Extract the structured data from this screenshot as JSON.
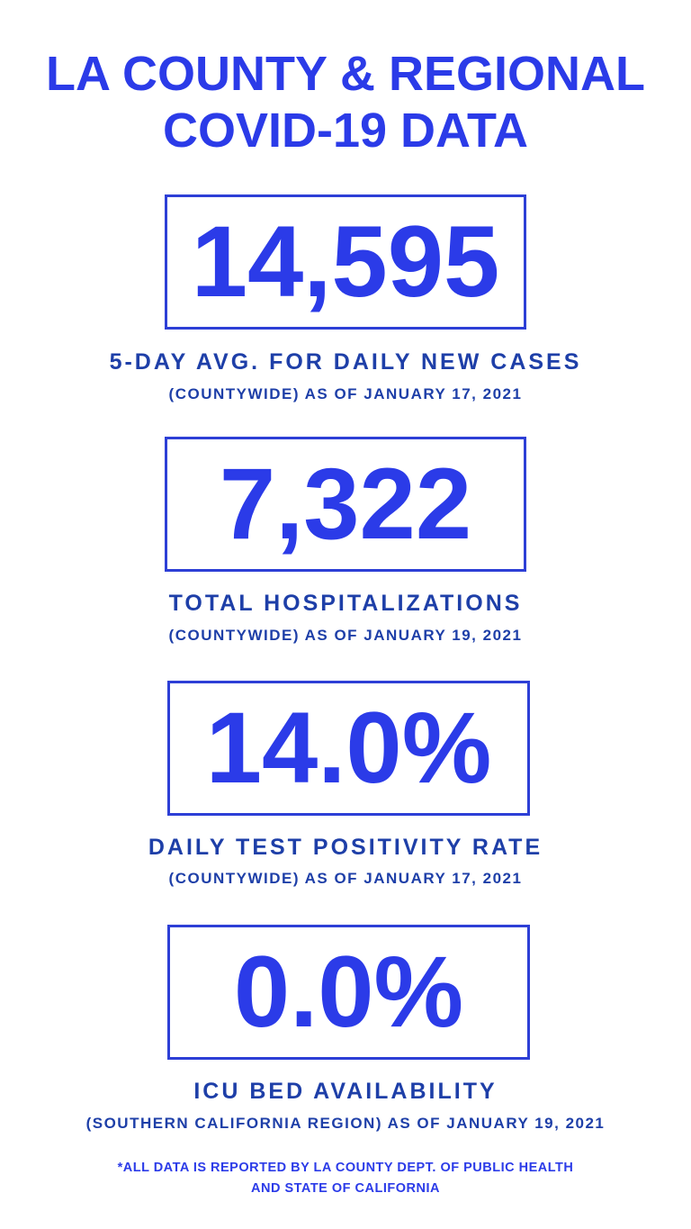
{
  "header": {
    "title_lines": [
      "LA COUNTY & REGIONAL",
      "COVID-19 DATA"
    ]
  },
  "stats": [
    {
      "value": "14,595",
      "label": "5-DAY AVG. FOR DAILY NEW CASES",
      "sublabel": "(COUNTYWIDE) AS OF JANUARY 17, 2021"
    },
    {
      "value": "7,322",
      "label": "TOTAL HOSPITALIZATIONS",
      "sublabel": "(COUNTYWIDE) AS OF JANUARY 19, 2021"
    },
    {
      "value": "14.0%",
      "label": "DAILY TEST POSITIVITY RATE",
      "sublabel": "(COUNTYWIDE) AS OF JANUARY 17, 2021"
    },
    {
      "value": "0.0%",
      "label": "ICU BED AVAILABILITY",
      "sublabel": "(SOUTHERN CALIFORNIA REGION) AS OF JANUARY 19, 2021"
    }
  ],
  "footnote_lines": [
    "*ALL DATA IS REPORTED BY LA COUNTY DEPT. OF PUBLIC HEALTH",
    "AND STATE OF CALIFORNIA"
  ]
}
